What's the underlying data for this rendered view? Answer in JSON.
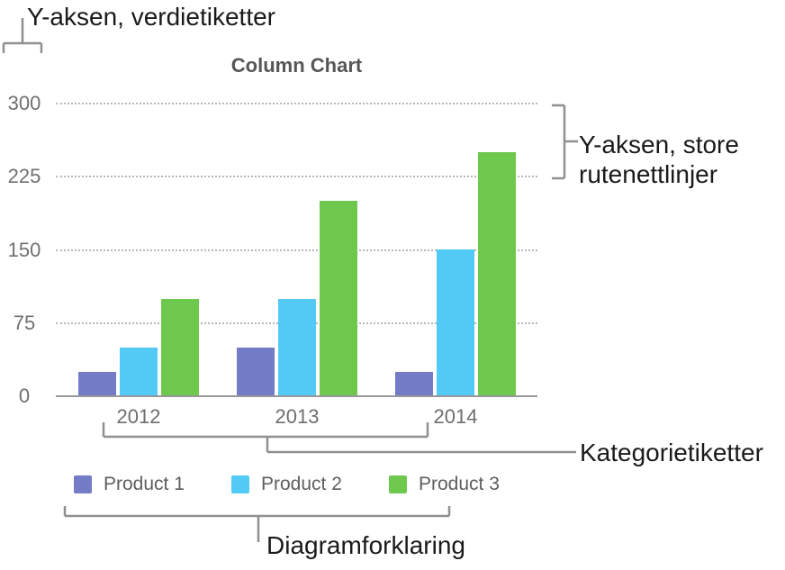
{
  "annotations": {
    "y_value_labels": "Y-aksen, verdietiketter",
    "major_gridlines": "Y-aksen, store\nrutenettlinjer",
    "category_labels": "Kategorietiketter",
    "legend": "Diagramforklaring"
  },
  "chart_data": {
    "type": "bar",
    "title": "Column Chart",
    "categories": [
      "2012",
      "2013",
      "2014"
    ],
    "series": [
      {
        "name": "Product 1",
        "color": "#747bc7",
        "values": [
          25,
          50,
          25
        ]
      },
      {
        "name": "Product 2",
        "color": "#52caf5",
        "values": [
          50,
          100,
          150
        ]
      },
      {
        "name": "Product 3",
        "color": "#6fc84e",
        "values": [
          100,
          200,
          250
        ]
      }
    ],
    "y_ticks": [
      0,
      75,
      150,
      225,
      300
    ],
    "ylim": [
      0,
      300
    ],
    "xlabel": "",
    "ylabel": "",
    "grid": "horizontal dotted major gridlines",
    "legend_position": "bottom"
  },
  "colors": {
    "annotation_text": "#1a1a1a",
    "bracket": "#909092",
    "axis_line": "#98989a",
    "gridline": "#b7b7b9",
    "tick_text": "#6f7072",
    "title_text": "#565658"
  }
}
